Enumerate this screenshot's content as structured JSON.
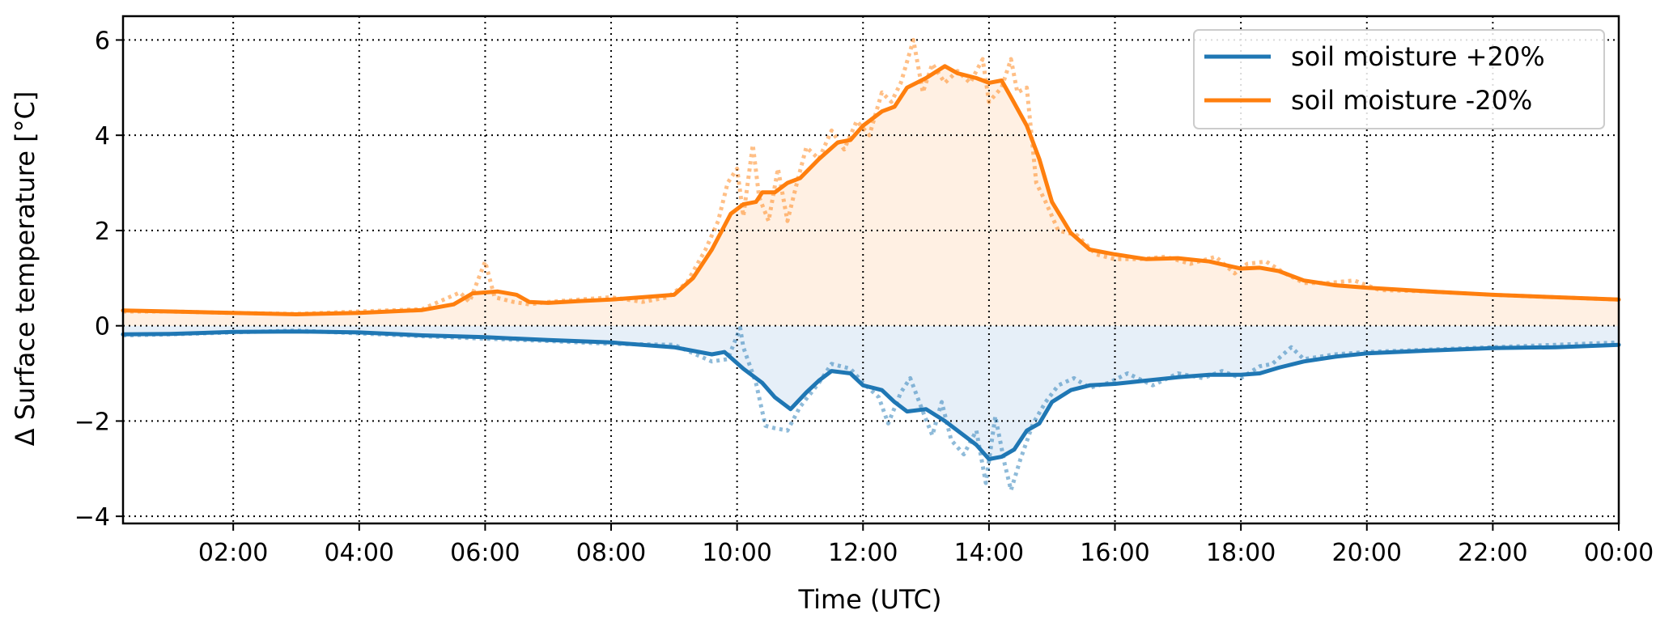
{
  "chart_data": {
    "type": "line",
    "xlabel": "Time (UTC)",
    "ylabel": "Δ Surface temperature [°C]",
    "xlim": [
      0.25,
      24
    ],
    "ylim": [
      -4.15,
      6.5
    ],
    "x_ticks": [
      2,
      4,
      6,
      8,
      10,
      12,
      14,
      16,
      18,
      20,
      22,
      24
    ],
    "x_tick_labels": [
      "02:00",
      "04:00",
      "06:00",
      "08:00",
      "10:00",
      "12:00",
      "14:00",
      "16:00",
      "18:00",
      "20:00",
      "22:00",
      "00:00"
    ],
    "y_ticks": [
      -4,
      -2,
      0,
      2,
      4,
      6
    ],
    "y_tick_labels": [
      "−4",
      "−2",
      "0",
      "2",
      "4",
      "6"
    ],
    "grid": true,
    "grid_style": "dotted",
    "legend_position": "top-right",
    "series": [
      {
        "name": "soil moisture +20%",
        "color": "#1f77b4",
        "fill_color": "#e6eff8",
        "smooth": [
          [
            0.25,
            -0.18
          ],
          [
            1,
            -0.17
          ],
          [
            2,
            -0.13
          ],
          [
            3,
            -0.12
          ],
          [
            4,
            -0.14
          ],
          [
            5,
            -0.2
          ],
          [
            6,
            -0.24
          ],
          [
            7,
            -0.3
          ],
          [
            8,
            -0.35
          ],
          [
            9,
            -0.45
          ],
          [
            9.6,
            -0.6
          ],
          [
            9.8,
            -0.55
          ],
          [
            10.1,
            -0.9
          ],
          [
            10.4,
            -1.2
          ],
          [
            10.6,
            -1.5
          ],
          [
            10.85,
            -1.75
          ],
          [
            11.1,
            -1.4
          ],
          [
            11.3,
            -1.15
          ],
          [
            11.5,
            -0.95
          ],
          [
            11.8,
            -1.0
          ],
          [
            12,
            -1.25
          ],
          [
            12.3,
            -1.35
          ],
          [
            12.5,
            -1.6
          ],
          [
            12.7,
            -1.8
          ],
          [
            13,
            -1.75
          ],
          [
            13.3,
            -2.0
          ],
          [
            13.6,
            -2.3
          ],
          [
            13.8,
            -2.5
          ],
          [
            14,
            -2.8
          ],
          [
            14.2,
            -2.75
          ],
          [
            14.4,
            -2.6
          ],
          [
            14.6,
            -2.2
          ],
          [
            14.8,
            -2.05
          ],
          [
            15,
            -1.6
          ],
          [
            15.3,
            -1.35
          ],
          [
            15.6,
            -1.25
          ],
          [
            16,
            -1.22
          ],
          [
            16.5,
            -1.15
          ],
          [
            17,
            -1.08
          ],
          [
            17.5,
            -1.03
          ],
          [
            18,
            -1.03
          ],
          [
            18.3,
            -1.0
          ],
          [
            18.6,
            -0.88
          ],
          [
            19,
            -0.75
          ],
          [
            19.5,
            -0.65
          ],
          [
            20,
            -0.58
          ],
          [
            21,
            -0.52
          ],
          [
            22,
            -0.47
          ],
          [
            23,
            -0.45
          ],
          [
            24,
            -0.4
          ]
        ],
        "raw": [
          [
            0.25,
            -0.2
          ],
          [
            1,
            -0.18
          ],
          [
            2,
            -0.14
          ],
          [
            3,
            -0.1
          ],
          [
            4,
            -0.16
          ],
          [
            5,
            -0.22
          ],
          [
            6,
            -0.27
          ],
          [
            7,
            -0.32
          ],
          [
            8,
            -0.38
          ],
          [
            9,
            -0.4
          ],
          [
            9.6,
            -0.75
          ],
          [
            9.85,
            -0.7
          ],
          [
            10.05,
            -0.05
          ],
          [
            10.1,
            -0.45
          ],
          [
            10.3,
            -1.2
          ],
          [
            10.45,
            -2.1
          ],
          [
            10.6,
            -2.15
          ],
          [
            10.8,
            -2.2
          ],
          [
            11.0,
            -1.7
          ],
          [
            11.3,
            -1.2
          ],
          [
            11.5,
            -0.8
          ],
          [
            11.8,
            -0.9
          ],
          [
            12.0,
            -1.2
          ],
          [
            12.25,
            -1.5
          ],
          [
            12.4,
            -2.05
          ],
          [
            12.6,
            -1.4
          ],
          [
            12.75,
            -1.1
          ],
          [
            12.95,
            -1.8
          ],
          [
            13.1,
            -2.3
          ],
          [
            13.25,
            -1.6
          ],
          [
            13.4,
            -2.4
          ],
          [
            13.6,
            -2.7
          ],
          [
            13.8,
            -2.2
          ],
          [
            13.95,
            -3.3
          ],
          [
            14.1,
            -1.9
          ],
          [
            14.25,
            -2.9
          ],
          [
            14.35,
            -3.45
          ],
          [
            14.5,
            -2.8
          ],
          [
            14.7,
            -2.05
          ],
          [
            14.9,
            -1.6
          ],
          [
            15.1,
            -1.25
          ],
          [
            15.35,
            -1.1
          ],
          [
            15.6,
            -1.3
          ],
          [
            15.9,
            -1.2
          ],
          [
            16.2,
            -1.0
          ],
          [
            16.6,
            -1.25
          ],
          [
            17,
            -1.0
          ],
          [
            17.4,
            -1.1
          ],
          [
            17.7,
            -0.95
          ],
          [
            18,
            -1.1
          ],
          [
            18.3,
            -0.85
          ],
          [
            18.5,
            -0.8
          ],
          [
            18.8,
            -0.45
          ],
          [
            19.0,
            -0.7
          ],
          [
            19.5,
            -0.6
          ],
          [
            20,
            -0.55
          ],
          [
            21,
            -0.5
          ],
          [
            22,
            -0.45
          ],
          [
            23,
            -0.4
          ],
          [
            24,
            -0.35
          ]
        ]
      },
      {
        "name": "soil moisture -20%",
        "color": "#ff7f0e",
        "fill_color": "#fff0e3",
        "smooth": [
          [
            0.25,
            0.32
          ],
          [
            1,
            0.3
          ],
          [
            2,
            0.27
          ],
          [
            3,
            0.24
          ],
          [
            4,
            0.27
          ],
          [
            5,
            0.33
          ],
          [
            5.5,
            0.45
          ],
          [
            5.8,
            0.68
          ],
          [
            6.2,
            0.72
          ],
          [
            6.5,
            0.65
          ],
          [
            6.7,
            0.5
          ],
          [
            7,
            0.48
          ],
          [
            7.5,
            0.52
          ],
          [
            8,
            0.55
          ],
          [
            8.5,
            0.6
          ],
          [
            9,
            0.65
          ],
          [
            9.3,
            1.0
          ],
          [
            9.6,
            1.6
          ],
          [
            9.9,
            2.35
          ],
          [
            10.1,
            2.55
          ],
          [
            10.3,
            2.6
          ],
          [
            10.4,
            2.8
          ],
          [
            10.6,
            2.8
          ],
          [
            10.8,
            3.0
          ],
          [
            11,
            3.1
          ],
          [
            11.3,
            3.5
          ],
          [
            11.6,
            3.85
          ],
          [
            11.8,
            3.9
          ],
          [
            12,
            4.2
          ],
          [
            12.3,
            4.5
          ],
          [
            12.5,
            4.6
          ],
          [
            12.7,
            5.0
          ],
          [
            13,
            5.2
          ],
          [
            13.3,
            5.45
          ],
          [
            13.5,
            5.3
          ],
          [
            13.8,
            5.2
          ],
          [
            14,
            5.1
          ],
          [
            14.2,
            5.15
          ],
          [
            14.35,
            4.8
          ],
          [
            14.6,
            4.2
          ],
          [
            14.8,
            3.5
          ],
          [
            15,
            2.6
          ],
          [
            15.3,
            1.95
          ],
          [
            15.6,
            1.6
          ],
          [
            16,
            1.5
          ],
          [
            16.5,
            1.4
          ],
          [
            17,
            1.42
          ],
          [
            17.5,
            1.35
          ],
          [
            18,
            1.2
          ],
          [
            18.3,
            1.22
          ],
          [
            18.6,
            1.15
          ],
          [
            19,
            0.95
          ],
          [
            19.5,
            0.85
          ],
          [
            20,
            0.8
          ],
          [
            21,
            0.72
          ],
          [
            22,
            0.65
          ],
          [
            23,
            0.6
          ],
          [
            24,
            0.55
          ]
        ],
        "raw": [
          [
            0.25,
            0.3
          ],
          [
            1,
            0.3
          ],
          [
            2,
            0.27
          ],
          [
            3,
            0.25
          ],
          [
            4,
            0.3
          ],
          [
            5,
            0.35
          ],
          [
            5.6,
            0.7
          ],
          [
            5.75,
            0.5
          ],
          [
            6.0,
            1.35
          ],
          [
            6.15,
            0.6
          ],
          [
            6.45,
            0.5
          ],
          [
            6.7,
            0.45
          ],
          [
            7,
            0.5
          ],
          [
            7.5,
            0.55
          ],
          [
            8,
            0.6
          ],
          [
            8.5,
            0.5
          ],
          [
            8.9,
            0.6
          ],
          [
            9.2,
            0.9
          ],
          [
            9.5,
            1.6
          ],
          [
            9.7,
            2.2
          ],
          [
            9.85,
            3.0
          ],
          [
            10.0,
            3.3
          ],
          [
            10.1,
            2.3
          ],
          [
            10.25,
            3.8
          ],
          [
            10.35,
            2.7
          ],
          [
            10.5,
            2.2
          ],
          [
            10.65,
            3.3
          ],
          [
            10.8,
            2.2
          ],
          [
            10.95,
            3.0
          ],
          [
            11.1,
            3.75
          ],
          [
            11.3,
            3.5
          ],
          [
            11.5,
            4.1
          ],
          [
            11.7,
            3.7
          ],
          [
            11.9,
            4.3
          ],
          [
            12.1,
            4.0
          ],
          [
            12.3,
            4.9
          ],
          [
            12.45,
            4.7
          ],
          [
            12.6,
            5.1
          ],
          [
            12.8,
            6.0
          ],
          [
            12.95,
            4.9
          ],
          [
            13.1,
            5.5
          ],
          [
            13.3,
            5.1
          ],
          [
            13.5,
            5.35
          ],
          [
            13.7,
            5.1
          ],
          [
            13.9,
            5.6
          ],
          [
            14.0,
            4.7
          ],
          [
            14.2,
            5.0
          ],
          [
            14.35,
            5.6
          ],
          [
            14.45,
            4.9
          ],
          [
            14.6,
            5.0
          ],
          [
            14.75,
            3.0
          ],
          [
            14.9,
            2.6
          ],
          [
            15.1,
            2.0
          ],
          [
            15.4,
            1.9
          ],
          [
            15.7,
            1.5
          ],
          [
            16,
            1.4
          ],
          [
            16.4,
            1.4
          ],
          [
            16.8,
            1.45
          ],
          [
            17.2,
            1.3
          ],
          [
            17.6,
            1.45
          ],
          [
            17.9,
            1.1
          ],
          [
            18.1,
            1.3
          ],
          [
            18.4,
            1.35
          ],
          [
            18.7,
            1.1
          ],
          [
            19.0,
            0.9
          ],
          [
            19.4,
            0.9
          ],
          [
            19.8,
            0.95
          ],
          [
            20.2,
            0.75
          ],
          [
            21,
            0.72
          ],
          [
            22,
            0.65
          ],
          [
            23,
            0.6
          ],
          [
            24,
            0.55
          ]
        ]
      }
    ]
  }
}
